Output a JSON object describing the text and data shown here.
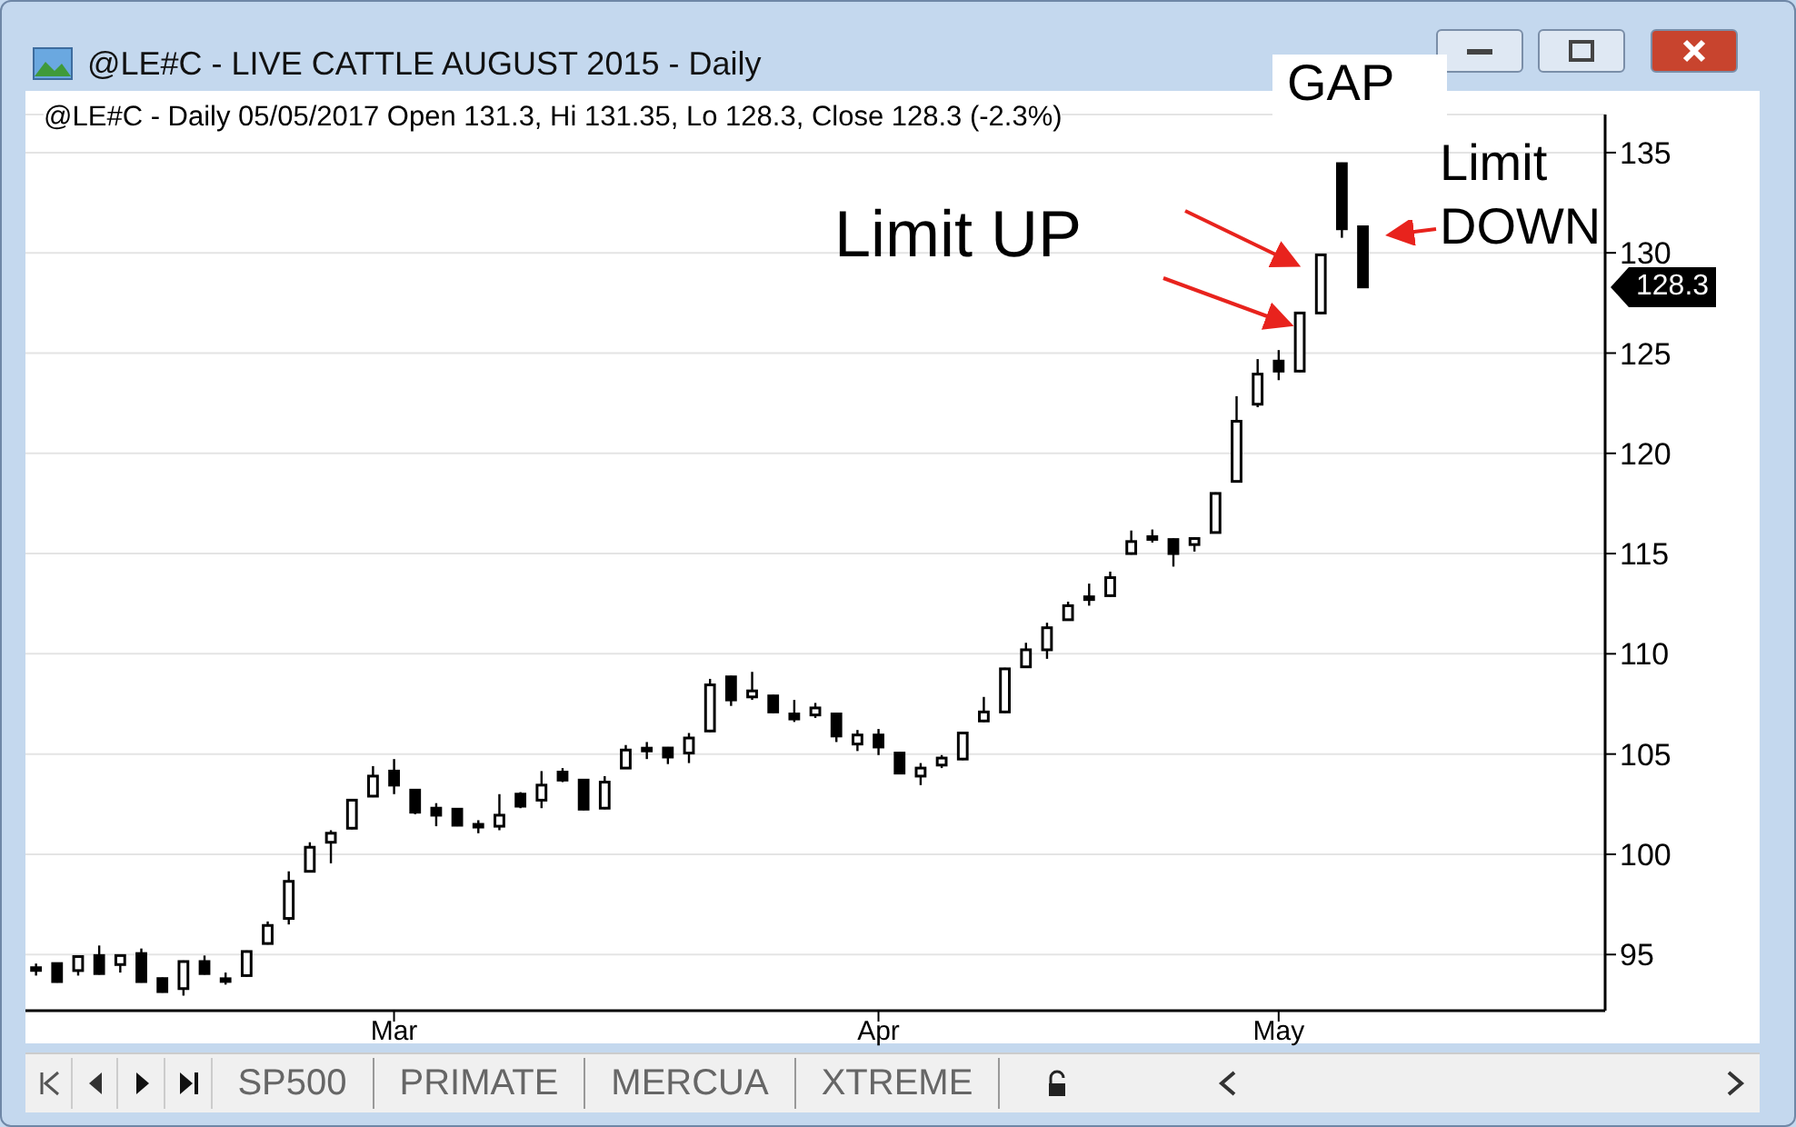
{
  "chart_data": {
    "type": "candlestick",
    "title": "@LE#C - LIVE CATTLE AUGUST 2015 - Daily",
    "subtitle": "@LE#C - Daily 05/05/2017 Open 131.3, Hi 131.35, Lo 128.3, Close 128.3 (-2.3%)",
    "categories": [
      null,
      null,
      null,
      null,
      null,
      null,
      null,
      null,
      null,
      null,
      null,
      null,
      null,
      null,
      null,
      null,
      null,
      "Mar",
      null,
      null,
      null,
      null,
      null,
      null,
      null,
      null,
      null,
      null,
      null,
      null,
      null,
      null,
      null,
      null,
      null,
      null,
      null,
      null,
      null,
      null,
      "Apr",
      null,
      null,
      null,
      null,
      null,
      null,
      null,
      null,
      null,
      null,
      null,
      null,
      null,
      null,
      null,
      null,
      null,
      null,
      "May",
      null,
      null,
      null,
      null,
      null,
      null,
      null,
      null,
      null,
      null,
      null,
      null,
      null,
      null,
      null
    ],
    "series": [
      {
        "color": "#000000",
        "ohlc": [
          [
            94.25,
            94.55,
            93.95,
            94.3
          ],
          [
            94.55,
            94.6,
            93.6,
            93.65
          ],
          [
            94.2,
            94.95,
            93.95,
            94.9
          ],
          [
            94.95,
            95.45,
            94.0,
            94.05
          ],
          [
            94.5,
            95.0,
            94.1,
            94.95
          ],
          [
            95.05,
            95.3,
            93.6,
            93.65
          ],
          [
            93.8,
            93.85,
            93.1,
            93.15
          ],
          [
            93.3,
            94.7,
            92.95,
            94.65
          ],
          [
            94.65,
            94.95,
            94.0,
            94.05
          ],
          [
            93.75,
            94.1,
            93.5,
            93.7
          ],
          [
            93.95,
            95.2,
            93.9,
            95.15
          ],
          [
            95.55,
            96.65,
            95.5,
            96.45
          ],
          [
            96.8,
            99.15,
            96.5,
            98.65
          ],
          [
            99.15,
            100.6,
            99.1,
            100.35
          ],
          [
            100.6,
            101.2,
            99.55,
            101.05
          ],
          [
            101.3,
            102.75,
            101.25,
            102.7
          ],
          [
            102.9,
            104.4,
            102.85,
            103.9
          ],
          [
            104.15,
            104.75,
            103.0,
            103.45
          ],
          [
            103.2,
            103.25,
            102.0,
            102.1
          ],
          [
            102.3,
            102.55,
            101.4,
            101.95
          ],
          [
            102.25,
            102.3,
            101.4,
            101.45
          ],
          [
            101.45,
            101.7,
            101.05,
            101.4
          ],
          [
            101.4,
            103.0,
            101.2,
            101.95
          ],
          [
            103.0,
            103.1,
            102.3,
            102.4
          ],
          [
            102.7,
            104.15,
            102.3,
            103.45
          ],
          [
            104.1,
            104.3,
            103.6,
            103.7
          ],
          [
            103.7,
            103.75,
            102.2,
            102.25
          ],
          [
            102.3,
            103.9,
            102.25,
            103.6
          ],
          [
            104.3,
            105.45,
            104.3,
            105.2
          ],
          [
            105.2,
            105.6,
            104.75,
            105.25
          ],
          [
            105.3,
            105.35,
            104.5,
            104.85
          ],
          [
            105.05,
            106.05,
            104.55,
            105.8
          ],
          [
            106.15,
            108.75,
            106.1,
            108.45
          ],
          [
            108.85,
            108.9,
            107.4,
            107.7
          ],
          [
            107.85,
            109.1,
            107.7,
            108.15
          ],
          [
            107.9,
            107.95,
            107.05,
            107.1
          ],
          [
            107.0,
            107.7,
            106.6,
            106.75
          ],
          [
            106.95,
            107.55,
            106.8,
            107.3
          ],
          [
            107.0,
            107.05,
            105.6,
            105.9
          ],
          [
            105.5,
            106.2,
            105.15,
            105.95
          ],
          [
            105.95,
            106.25,
            104.95,
            105.35
          ],
          [
            105.05,
            105.1,
            104.0,
            104.05
          ],
          [
            103.9,
            104.55,
            103.45,
            104.3
          ],
          [
            104.45,
            104.95,
            104.3,
            104.8
          ],
          [
            104.75,
            106.1,
            104.7,
            106.05
          ],
          [
            106.65,
            107.85,
            106.6,
            107.1
          ],
          [
            107.1,
            109.3,
            107.05,
            109.25
          ],
          [
            109.35,
            110.55,
            109.3,
            110.2
          ],
          [
            110.2,
            111.55,
            109.75,
            111.3
          ],
          [
            111.7,
            112.6,
            111.65,
            112.4
          ],
          [
            112.75,
            113.5,
            112.4,
            112.8
          ],
          [
            112.9,
            114.1,
            112.85,
            113.8
          ],
          [
            115.0,
            116.15,
            114.95,
            115.6
          ],
          [
            115.75,
            116.2,
            115.55,
            115.8
          ],
          [
            115.7,
            115.75,
            114.35,
            115.0
          ],
          [
            115.45,
            115.8,
            115.1,
            115.75
          ],
          [
            116.05,
            118.05,
            116.0,
            118.0
          ],
          [
            118.6,
            122.85,
            118.55,
            121.6
          ],
          [
            122.45,
            124.7,
            122.3,
            123.95
          ],
          [
            124.6,
            125.15,
            123.65,
            124.1
          ],
          [
            124.1,
            127.05,
            124.05,
            127.0
          ],
          [
            127.0,
            129.95,
            126.95,
            129.9
          ],
          [
            134.45,
            134.5,
            130.75,
            131.2
          ],
          [
            131.3,
            131.35,
            128.3,
            128.3
          ],
          null,
          null,
          null,
          null,
          null,
          null,
          null,
          null,
          null,
          null,
          null
        ]
      }
    ],
    "ylim": [
      92.2,
      136.9
    ],
    "yticks": [
      95,
      100,
      105,
      110,
      115,
      120,
      125,
      130,
      135
    ],
    "grid": "y",
    "annotations": [
      "GAP",
      "Limit UP",
      "Limit DOWN",
      "128.3",
      "SP500",
      "PRIMATE",
      "MERCUA",
      "XTREME"
    ]
  }
}
